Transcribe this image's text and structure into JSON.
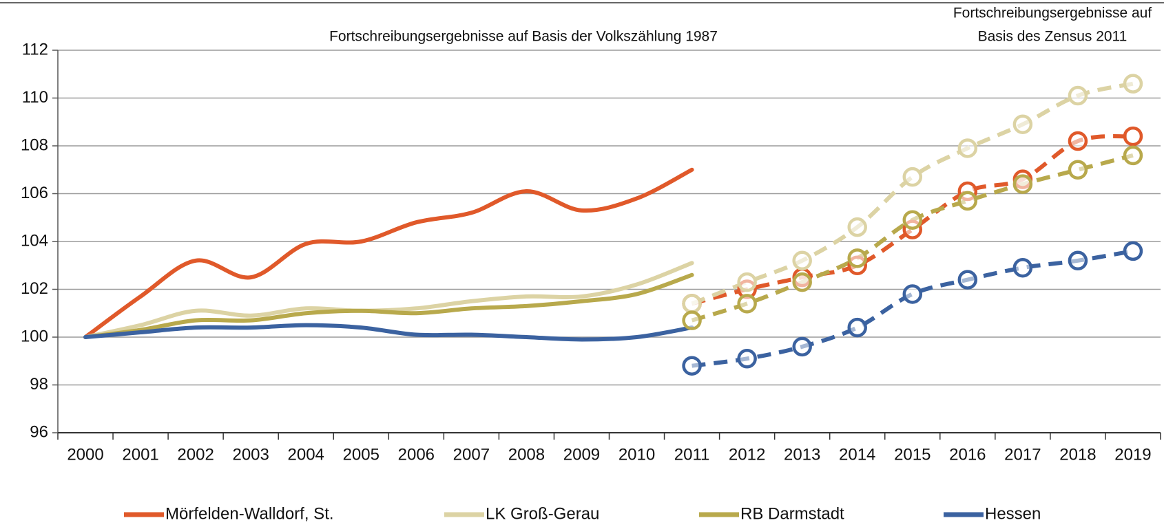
{
  "chart_data": {
    "type": "line",
    "categories": [
      "2000",
      "2001",
      "2002",
      "2003",
      "2004",
      "2005",
      "2006",
      "2007",
      "2008",
      "2009",
      "2010",
      "2011",
      "2012",
      "2013",
      "2014",
      "2015",
      "2016",
      "2017",
      "2018",
      "2019"
    ],
    "annotations": [
      {
        "text": "Fortschreibungsergebnisse auf Basis der Volkszählung 1987"
      },
      {
        "lines": [
          "Fortschreibungsergebnisse auf",
          "Basis des Zensus 2011"
        ]
      }
    ],
    "ylim": [
      96,
      112
    ],
    "yticks": [
      96,
      98,
      100,
      102,
      104,
      106,
      108,
      110,
      112
    ],
    "grid": true,
    "series": [
      {
        "name": "Mörfelden-Walldorf, St.",
        "color": "#e0592a",
        "values": [
          100,
          101.7,
          103.2,
          102.5,
          103.9,
          104.0,
          104.8,
          105.2,
          106.1,
          105.3,
          105.8,
          107.0,
          null,
          null,
          null,
          null,
          null,
          null,
          null,
          null
        ],
        "zensus_values": [
          null,
          null,
          null,
          null,
          null,
          null,
          null,
          null,
          null,
          null,
          null,
          101.4,
          102.0,
          102.5,
          103.0,
          104.5,
          106.1,
          106.6,
          108.2,
          108.4
        ]
      },
      {
        "name": "LK Groß-Gerau",
        "color": "#dcd3a4",
        "values": [
          100,
          100.5,
          101.1,
          100.9,
          101.2,
          101.1,
          101.2,
          101.5,
          101.7,
          101.7,
          102.2,
          103.1,
          null,
          null,
          null,
          null,
          null,
          null,
          null,
          null
        ],
        "zensus_values": [
          null,
          null,
          null,
          null,
          null,
          null,
          null,
          null,
          null,
          null,
          null,
          101.4,
          102.3,
          103.2,
          104.6,
          106.7,
          107.9,
          108.9,
          110.1,
          110.6
        ]
      },
      {
        "name": "RB Darmstadt",
        "color": "#b8a94c",
        "values": [
          100,
          100.3,
          100.7,
          100.7,
          101.0,
          101.1,
          101.0,
          101.2,
          101.3,
          101.5,
          101.8,
          102.6,
          null,
          null,
          null,
          null,
          null,
          null,
          null,
          null
        ],
        "zensus_values": [
          null,
          null,
          null,
          null,
          null,
          null,
          null,
          null,
          null,
          null,
          null,
          100.7,
          101.4,
          102.3,
          103.3,
          104.9,
          105.7,
          106.4,
          107.0,
          107.6
        ]
      },
      {
        "name": "Hessen",
        "color": "#3b62a0",
        "values": [
          100,
          100.2,
          100.4,
          100.4,
          100.5,
          100.4,
          100.1,
          100.1,
          100.0,
          99.9,
          100.0,
          100.4,
          null,
          null,
          null,
          null,
          null,
          null,
          null,
          null
        ],
        "zensus_values": [
          null,
          null,
          null,
          null,
          null,
          null,
          null,
          null,
          null,
          null,
          null,
          98.8,
          99.1,
          99.6,
          100.4,
          101.8,
          102.4,
          102.9,
          103.2,
          103.6
        ]
      }
    ]
  }
}
